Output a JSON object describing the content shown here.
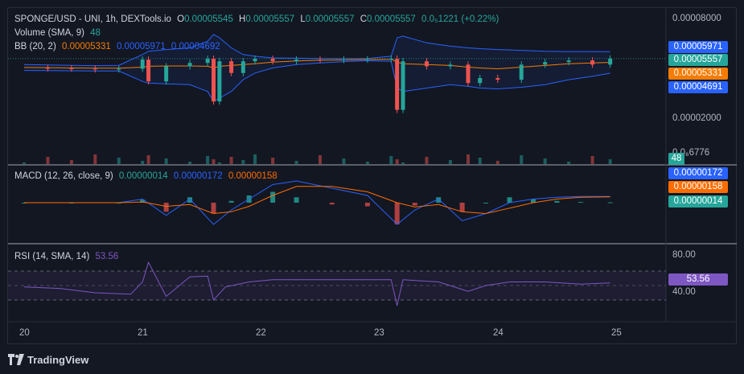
{
  "colors": {
    "up": "#26a69a",
    "down": "#ef5350",
    "bb": "#2962ff",
    "basis": "#f57c00",
    "macd": "#2962ff",
    "signal": "#ff6d00",
    "rsi": "#7e57c2",
    "bg": "#131722"
  },
  "legends": {
    "main": {
      "symbol": "SPONGE/USD - UNI, 1h, DEXTools.io",
      "o_label": "O",
      "o": "0.00005545",
      "h_label": "H",
      "h": "0.00005557",
      "l_label": "L",
      "l": "0.00005557",
      "c_label": "C",
      "c": "0.00005557",
      "change": "0.0₅1221 (+0.22%)"
    },
    "volume": {
      "label": "Volume (SMA, 9)",
      "value": "48"
    },
    "bb": {
      "label": "BB (20, 2)",
      "basis": "0.00005331",
      "upper": "0.00005971",
      "lower": "0.00004692"
    },
    "macd": {
      "label": "MACD (12, 26, close, 9)",
      "hist": "0.00000014",
      "macd": "0.00000172",
      "signal": "0.00000158"
    },
    "rsi": {
      "label": "RSI (14, SMA, 14)",
      "value": "53.56"
    }
  },
  "axes": {
    "price_ticks": [
      "0.00008000",
      "0.00002000",
      "0.0₆6776"
    ],
    "rsi_ticks": [
      "80.00",
      "40.00"
    ],
    "x_ticks": [
      "20",
      "21",
      "22",
      "23",
      "24",
      "25"
    ]
  },
  "badges": {
    "bb_upper": "0.00005971",
    "last": "0.00005557",
    "basis": "0.00005331",
    "bb_lower": "0.00004691",
    "volume": "48",
    "macd": "0.00000172",
    "signal": "0.00000158",
    "hist": "0.00000014",
    "rsi": "53.56"
  },
  "footer": {
    "brand": "TradingView"
  },
  "chart_data": [
    {
      "type": "line",
      "name": "price_panel",
      "x_unit": "day",
      "x": [
        20.0,
        20.2,
        20.4,
        20.6,
        20.8,
        21.0,
        21.05,
        21.2,
        21.4,
        21.55,
        21.6,
        21.65,
        21.75,
        21.85,
        21.95,
        22.1,
        22.3,
        22.5,
        22.7,
        22.9,
        23.1,
        23.15,
        23.2,
        23.4,
        23.6,
        23.75,
        23.85,
        24.0,
        24.2,
        24.4,
        24.6,
        24.8,
        24.95
      ],
      "series": [
        {
          "name": "Close",
          "values": [
            5e-05,
            4.98e-05,
            4.96e-05,
            4.92e-05,
            4.95e-05,
            5.5e-05,
            4.2e-05,
            5.1e-05,
            5.3e-05,
            5.55e-05,
            3e-05,
            5.4e-05,
            4.7e-05,
            5.4e-05,
            5.55e-05,
            5.4e-05,
            5.5e-05,
            5.48e-05,
            5.5e-05,
            5.52e-05,
            5.55e-05,
            2.5e-05,
            5.4e-05,
            5.1e-05,
            5.2e-05,
            4.1e-05,
            4.4e-05,
            4.3e-05,
            5.2e-05,
            5.35e-05,
            5.45e-05,
            5.2e-05,
            5.56e-05
          ]
        },
        {
          "name": "BB Upper",
          "values": [
            5.2e-05,
            5.18e-05,
            5.16e-05,
            5.14e-05,
            5.16e-05,
            5.8e-05,
            6e-05,
            6.1e-05,
            6.2e-05,
            6.6e-05,
            7e-05,
            6.8e-05,
            6.2e-05,
            5.8e-05,
            5.7e-05,
            5.6e-05,
            5.58e-05,
            5.56e-05,
            5.56e-05,
            5.56e-05,
            5.7e-05,
            6.8e-05,
            6.9e-05,
            6.5e-05,
            6.3e-05,
            6.2e-05,
            6.15e-05,
            6.1e-05,
            6.05e-05,
            6e-05,
            5.98e-05,
            5.98e-05,
            5.97e-05
          ]
        },
        {
          "name": "BB Basis",
          "values": [
            5.03e-05,
            5.02e-05,
            5e-05,
            4.99e-05,
            4.99e-05,
            5.05e-05,
            5.1e-05,
            5.12e-05,
            5.12e-05,
            5.1e-05,
            5e-05,
            5.1e-05,
            5.15e-05,
            5.2e-05,
            5.25e-05,
            5.35e-05,
            5.42e-05,
            5.46e-05,
            5.48e-05,
            5.5e-05,
            5.52e-05,
            5.35e-05,
            5.25e-05,
            5.2e-05,
            5.15e-05,
            5.05e-05,
            5e-05,
            4.95e-05,
            5.05e-05,
            5.15e-05,
            5.25e-05,
            5.3e-05,
            5.33e-05
          ]
        },
        {
          "name": "BB Lower",
          "values": [
            4.85e-05,
            4.84e-05,
            4.83e-05,
            4.82e-05,
            4.82e-05,
            4.2e-05,
            4.1e-05,
            4.05e-05,
            4e-05,
            3.6e-05,
            3e-05,
            3.2e-05,
            3.6e-05,
            4.3e-05,
            4.7e-05,
            5e-05,
            5.2e-05,
            5.3e-05,
            5.38e-05,
            5.43e-05,
            5.4e-05,
            3.8e-05,
            3.6e-05,
            3.8e-05,
            4e-05,
            3.9e-05,
            3.8e-05,
            3.75e-05,
            3.85e-05,
            4e-05,
            4.3e-05,
            4.5e-05,
            4.69e-05
          ]
        }
      ]
    },
    {
      "type": "line",
      "name": "macd_panel",
      "x_unit": "day",
      "x": [
        20.0,
        20.4,
        20.8,
        21.0,
        21.2,
        21.4,
        21.6,
        21.75,
        21.9,
        22.1,
        22.3,
        22.6,
        22.9,
        23.15,
        23.3,
        23.5,
        23.7,
        23.9,
        24.1,
        24.3,
        24.5,
        24.7,
        24.95
      ],
      "series": [
        {
          "name": "MACD",
          "values": [
            0.0,
            0.0,
            0.0,
            1e-06,
            -3.5e-06,
            1e-06,
            -6e-06,
            -2e-06,
            1e-06,
            5e-06,
            6e-06,
            4e-06,
            2e-06,
            -6e-06,
            -2e-06,
            1e-06,
            -5e-06,
            -3e-06,
            0.0,
            1e-06,
            1.5e-06,
            1.7e-06,
            1.7e-06
          ]
        },
        {
          "name": "Signal",
          "values": [
            0.0,
            0.0,
            0.0,
            2e-07,
            -1e-06,
            -5e-07,
            -3e-06,
            -2.5e-06,
            -1e-06,
            2e-06,
            4.5e-06,
            4.5e-06,
            3e-06,
            0.0,
            -1.2e-06,
            -5e-07,
            -2.5e-06,
            -3e-06,
            -1.5e-06,
            0.0,
            1e-06,
            1.5e-06,
            1.6e-06
          ]
        },
        {
          "name": "Histogram",
          "values": [
            0.0,
            0.0,
            0.0,
            8e-07,
            -2.5e-06,
            1.5e-06,
            -3e-06,
            5e-07,
            2e-06,
            3e-06,
            1.5e-06,
            -5e-07,
            -1e-06,
            -6e-06,
            -8e-07,
            1.5e-06,
            -2.5e-06,
            0.0,
            1.5e-06,
            1e-06,
            5e-07,
            2e-07,
            1e-07
          ]
        }
      ]
    },
    {
      "type": "line",
      "name": "rsi_panel",
      "x_unit": "day",
      "x": [
        20.0,
        20.3,
        20.6,
        20.9,
        21.0,
        21.05,
        21.2,
        21.4,
        21.55,
        21.6,
        21.7,
        21.9,
        22.1,
        22.5,
        22.9,
        23.1,
        23.15,
        23.2,
        23.5,
        23.75,
        23.9,
        24.1,
        24.4,
        24.7,
        24.95
      ],
      "series": [
        {
          "name": "RSI",
          "values": [
            48,
            46,
            40,
            38,
            55,
            82,
            35,
            62,
            63,
            30,
            48,
            55,
            58,
            58,
            58,
            58,
            22,
            58,
            55,
            42,
            50,
            55,
            55,
            52,
            53.56
          ]
        }
      ],
      "ylim": [
        20,
        90
      ]
    }
  ]
}
